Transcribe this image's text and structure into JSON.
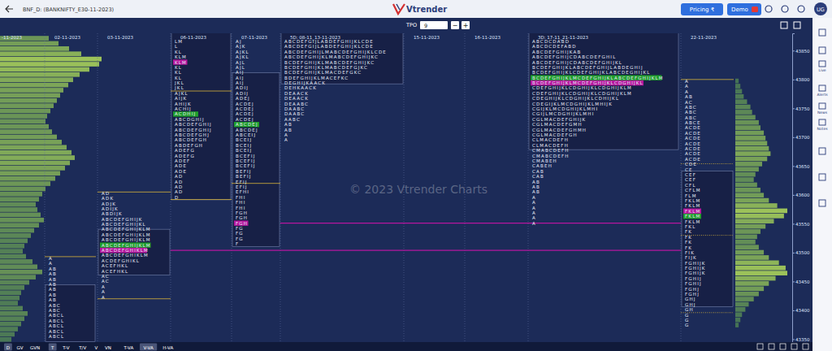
{
  "header": {
    "symbol": "BNF_D: (BANKNIFTY_E30-11-2023)",
    "logo": "Vtrender",
    "pricing": "Pricing ₹",
    "demo": "Demo",
    "user": "UG"
  },
  "toolbar": {
    "label": "TPO",
    "minus": "−",
    "plus": "+"
  },
  "sidebar": [
    "Live",
    "Alerts",
    "News",
    "Notes"
  ],
  "bottom_bar": [
    "D",
    "GV",
    "GVN",
    "T",
    "T-V",
    "T/V",
    "V",
    "VN",
    "T-VA",
    "V-VA",
    "H-VA"
  ],
  "watermark": "© 2023 Vtrender Charts",
  "chart_data": {
    "type": "market_profile",
    "ylim": [
      43345,
      43880
    ],
    "yticks": [
      43350,
      43400,
      43450,
      43500,
      43550,
      43600,
      43650,
      43700,
      43750,
      43800,
      43850
    ],
    "tpo_size": 9,
    "categories": [
      "-11-2023",
      "02-11-2023",
      "03-11-2023",
      "06-11-2023",
      "07-11-2023",
      "5D: 08-11_13-11-2023",
      "15-11-2023",
      "16-11-2023",
      "3D: 17-11_21-11-2023",
      "22-11-2023"
    ],
    "profiles": [
      {
        "column": 1,
        "high": 43490,
        "va_high": 43440,
        "va_low": 43350,
        "rows": [
          "A",
          "A",
          "AB",
          "AB",
          "AB",
          "AB",
          "AB",
          "AB",
          "AB",
          "ABC",
          "ABC",
          "ABCL",
          "ABCL",
          "ABCL",
          "ABCL",
          "ABCL"
        ]
      },
      {
        "column": 2,
        "high": 43603,
        "va_high": 43536,
        "va_low": 43466,
        "poc": 43504,
        "vwap": 43513,
        "rows": [
          "AD",
          "ADK",
          "ADJK",
          "ADIJK",
          "ABDIJK",
          "ABCDEFGHIJK",
          "ABCDEFGHIJKL",
          "ABCDEFGHIJKLM",
          "ABCDEFGHIJKLM",
          "ABCDEFGHIJKLM",
          "ABCDEFGHIJKLM",
          "ABCDEFGHIKLM",
          "ABCDEFGHIKLM",
          "ACDEFGHIKL",
          "ACEFHKL",
          "ACEFHKL",
          "AC",
          "AC",
          "A",
          "A",
          "A"
        ]
      },
      {
        "column": 3,
        "high": 43866,
        "va_high": 43880,
        "va_low": 43596,
        "poc": 43830,
        "vwap": 43740,
        "rows": [
          "LM",
          "L",
          "KL",
          "KLM",
          "KLM",
          "KL",
          "KL",
          "KL",
          "JKL",
          "JKL",
          "AJKL",
          "AIJK",
          "AHIJK",
          "ACHIJ",
          "ACDHIJ",
          "ABCDGHIJ",
          "ABCDEFGHIJ",
          "ABCDEFGHIJ",
          "ABCDEFGHJ",
          "ABCDEFGH",
          "ABDEFGH",
          "ADEFG",
          "ADEFG",
          "ADEF",
          "ADE",
          "ADE",
          "AD",
          "AD",
          "AD",
          "AD",
          "D"
        ]
      },
      {
        "column": 4,
        "high": 43866,
        "va_high": 43807,
        "va_low": 43515,
        "poc": 43551,
        "vwap": 43722,
        "rows": [
          "AJ",
          "AJK",
          "AJKL",
          "AJKL",
          "AJL",
          "AJL",
          "AIJ",
          "AIJ",
          "AIJ",
          "ADIJ",
          "ADIJ",
          "ADEJ",
          "ACDEJ",
          "ACDEJ",
          "ACDEJ",
          "ACDEJ",
          "ABCDEJ",
          "ABCDEJ",
          "ABCEIJ",
          "BCEIJ",
          "BCEIJ",
          "BCEIJ",
          "BCEFIJ",
          "BCEFIJ",
          "BCEFIJ",
          "BEFIJ",
          "BEFIJ",
          "EFIJ",
          "EFIJ",
          "EFHI",
          "FHI",
          "FHI",
          "FHI",
          "FGH",
          "FGH",
          "FGH",
          "FG",
          "FG",
          "FG",
          "F"
        ]
      },
      {
        "column": 5,
        "high": 43866,
        "va_high": 43880,
        "va_low": 43797,
        "rows": [
          "ABCDEFGIJLABDEFGHIJKLCDE",
          "ABCDEFGIJLABDEFGHIJKLCDE",
          "ABCDEFGHIJLMABCDEFGHIJKLCDE",
          "ABCDEFGHIJKLMABCDEFGHIJKC",
          "BCDEFGHIJKLMABCDEFGHIJKC",
          "BCDEFGHIJKLMABCDEFGJKC",
          "BCDEFGHIJKLMACDEFGKC",
          "BDEFGHIJKLMACEFKC",
          "DEGHIJKAACK",
          "DEHKAACK",
          "DEAACK",
          "DEAACK",
          "DEAABC",
          "DAABC",
          "DAABC",
          "AABC",
          "AB",
          "AB",
          "A",
          "A"
        ]
      },
      {
        "column": 8,
        "high": 43866,
        "va_high": 43880,
        "va_low": 43683,
        "poc": 43794,
        "vwap": 43803,
        "rows": [
          "ABCDCDABD",
          "ABCDCDEFABD",
          "ABCDEFGHIJKAB",
          "ABCDEFGHIJCDABCDEFGHIL",
          "ABCDEFGHIJCDABCDEFGHIJKL",
          "BCDEFGHIJKLABCDEFGHIJLABDEGHIJ",
          "BCDEFGHIJKLCDEFGHIJKLABCDEGHIJKL",
          "BCDEFGHIJKLMCDEFGHIJKLABCDEFGHIJKLM",
          "BCDEFGHIJKLMCDEFGHIJKLCDGHIJKL",
          "CDEFGHIJKLCDGHIJKLCDGHIJKLM",
          "CDEFGHIJKLCDGHIJKLCDGHIJKLM",
          "CDEGHIJKLCDGHIJKLCDHIJKL",
          "CDEGIJKLMCDGHIJKLMHIJK",
          "CGIJKLMCDGHIJKLMHI",
          "CGIJLMCDGHIJKLMHI",
          "CGLMACDEFGHIJK",
          "CGLMACDEFGMH",
          "CGLMACDEFGHMH",
          "CGLMACDEFGH",
          "CLMACDEFH",
          "CLMACDEFH",
          "CMABCDEFH",
          "CMABCDEFH",
          "CMABEH",
          "CABEH",
          "CAB",
          "CAB",
          "AB",
          "AB",
          "AB",
          "A",
          "A",
          "A",
          "A",
          "A",
          "A"
        ]
      },
      {
        "column": 9,
        "high": 43797,
        "va_high": 43637,
        "va_low": 43411,
        "poc": 43572,
        "vwap": 43563,
        "rows": [
          "A",
          "A",
          "A",
          "AB",
          "AC",
          "ABC",
          "ABC",
          "ABC",
          "ABCE",
          "ACDE",
          "ACDE",
          "ACDE",
          "ACDE",
          "ACDE",
          "ACDE",
          "ACDE",
          "CDE",
          "CE",
          "CEF",
          "CEF",
          "CFL",
          "CFLM",
          "FLM",
          "FKLM",
          "FKLM",
          "FKLM",
          "FKLM",
          "FKLM",
          "FKL",
          "FK",
          "FK",
          "FK",
          "FK",
          "FIK",
          "FIJK",
          "FGHIJK",
          "FGHIJK",
          "FGHIJK",
          "FGHIJ",
          "FGHIJ",
          "FGHJ",
          "FGHJ",
          "GHJ",
          "GHJ",
          "GH",
          "G",
          "G",
          "G"
        ]
      }
    ],
    "volume_profiles": [
      {
        "column": 0,
        "high": 43871,
        "values": [
          60,
          72,
          85,
          100,
          125,
          122,
          110,
          98,
          90,
          84,
          78,
          74,
          70,
          66,
          62,
          58,
          56,
          60,
          64,
          70,
          76,
          82,
          88,
          92,
          86,
          80,
          74,
          68,
          62,
          56,
          52,
          48,
          44,
          46,
          50,
          54,
          48,
          42,
          38,
          34,
          30,
          28,
          32,
          40,
          46,
          52,
          44,
          36,
          30,
          26,
          24,
          22,
          28,
          34,
          30,
          26,
          22,
          18,
          14
        ]
      },
      {
        "column": 9,
        "high": 43797,
        "values": [
          4,
          6,
          8,
          10,
          14,
          18,
          20,
          24,
          28,
          30,
          34,
          36,
          38,
          40,
          42,
          38,
          32,
          28,
          24,
          22,
          26,
          30,
          34,
          40,
          50,
          62,
          58,
          46,
          36,
          30,
          26,
          24,
          28,
          34,
          40,
          52,
          60,
          62,
          48,
          40,
          34,
          28,
          22,
          16,
          12,
          8,
          6,
          4
        ]
      }
    ],
    "lines": [
      {
        "price": 43551,
        "from": 5,
        "to": 9,
        "color": "#b5179e"
      },
      {
        "price": 43504,
        "from": 3,
        "to": 9,
        "color": "#b5179e"
      }
    ],
    "marks": [
      {
        "price": 43493,
        "column": 1,
        "line_style": "solid"
      },
      {
        "price": 43605,
        "column": 2,
        "line_style": "solid"
      },
      {
        "price": 43420,
        "column": 2,
        "line_style": "solid"
      },
      {
        "price": 43780,
        "column": 3,
        "line_style": "solid"
      },
      {
        "price": 43592,
        "column": 3,
        "line_style": "solid"
      },
      {
        "price": 43620,
        "column": 4,
        "line_style": "solid"
      },
      {
        "price": 43800,
        "column": 9,
        "line_style": "solid"
      },
      {
        "price": 43654,
        "column": 9,
        "line_style": "dotted"
      },
      {
        "price": 43530,
        "column": 9,
        "line_style": "dotted"
      },
      {
        "price": 43396,
        "column": 9,
        "line_style": "dotted"
      }
    ]
  }
}
